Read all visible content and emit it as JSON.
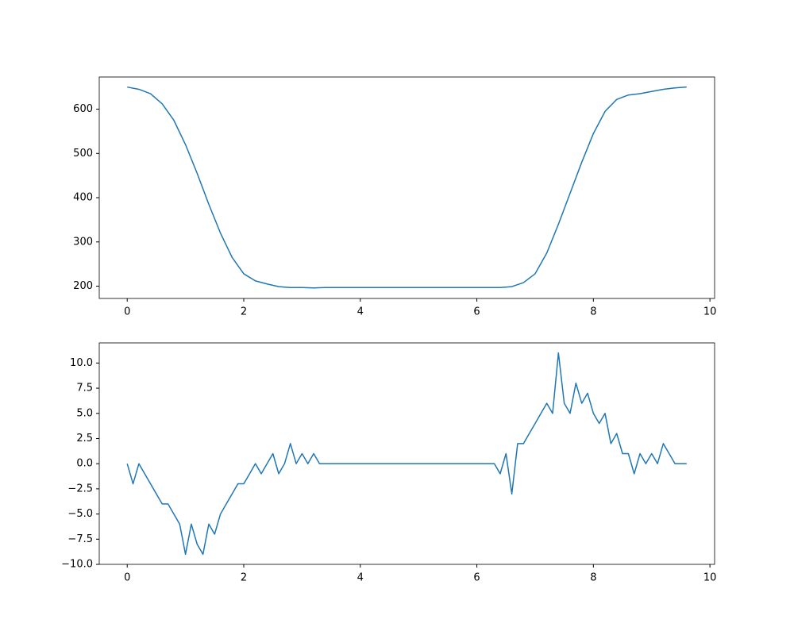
{
  "chart_data": [
    {
      "type": "line",
      "x": [
        0,
        0.2,
        0.4,
        0.6,
        0.8,
        1.0,
        1.2,
        1.4,
        1.6,
        1.8,
        2.0,
        2.2,
        2.4,
        2.6,
        2.8,
        3.0,
        3.2,
        3.4,
        3.6,
        3.8,
        4.0,
        4.2,
        4.4,
        4.6,
        4.8,
        5.0,
        5.2,
        5.4,
        5.6,
        5.8,
        6.0,
        6.2,
        6.4,
        6.6,
        6.8,
        7.0,
        7.2,
        7.4,
        7.6,
        7.8,
        8.0,
        8.2,
        8.4,
        8.6,
        8.8,
        9.0,
        9.2,
        9.4,
        9.6
      ],
      "series": [
        {
          "color": "#1f77b4",
          "values": [
            650,
            645,
            635,
            612,
            575,
            520,
            455,
            385,
            320,
            265,
            228,
            212,
            205,
            199,
            197,
            197,
            196,
            197,
            197,
            197,
            197,
            197,
            197,
            197,
            197,
            197,
            197,
            197,
            197,
            197,
            197,
            197,
            197,
            199,
            208,
            228,
            275,
            340,
            410,
            480,
            545,
            595,
            622,
            632,
            635,
            640,
            645,
            648,
            650
          ]
        }
      ],
      "xlim": [
        -0.48,
        10.08
      ],
      "xticks": [
        0,
        2,
        4,
        6,
        8,
        10
      ],
      "ylim": [
        172.25,
        672.75
      ],
      "yticks": [
        200,
        300,
        400,
        500,
        600
      ]
    },
    {
      "type": "line",
      "x": [
        0,
        0.1,
        0.2,
        0.3,
        0.4,
        0.5,
        0.6,
        0.7,
        0.8,
        0.9,
        1.0,
        1.1,
        1.2,
        1.3,
        1.4,
        1.5,
        1.6,
        1.7,
        1.8,
        1.9,
        2.0,
        2.1,
        2.2,
        2.3,
        2.4,
        2.5,
        2.6,
        2.7,
        2.8,
        2.9,
        3.0,
        3.1,
        3.2,
        3.3,
        3.4,
        3.5,
        3.6,
        3.7,
        3.8,
        3.9,
        4.0,
        4.1,
        4.2,
        4.3,
        4.4,
        4.5,
        4.6,
        4.7,
        4.8,
        4.9,
        5.0,
        5.1,
        5.2,
        5.3,
        5.4,
        5.5,
        5.6,
        5.7,
        5.8,
        5.9,
        6.0,
        6.1,
        6.2,
        6.3,
        6.4,
        6.5,
        6.6,
        6.7,
        6.8,
        6.9,
        7.0,
        7.1,
        7.2,
        7.3,
        7.4,
        7.5,
        7.6,
        7.7,
        7.8,
        7.9,
        8.0,
        8.1,
        8.2,
        8.3,
        8.4,
        8.5,
        8.6,
        8.7,
        8.8,
        8.9,
        9.0,
        9.1,
        9.2,
        9.3,
        9.4,
        9.5,
        9.6
      ],
      "series": [
        {
          "color": "#1f77b4",
          "values": [
            0,
            -2,
            0,
            -1,
            -2,
            -3,
            -4,
            -4,
            -5,
            -6,
            -9,
            -6,
            -8,
            -9,
            -6,
            -7,
            -5,
            -4,
            -3,
            -2,
            -2,
            -1,
            0,
            -1,
            0,
            1,
            -1,
            0,
            2,
            0,
            1,
            0,
            1,
            0,
            0,
            0,
            0,
            0,
            0,
            0,
            0,
            0,
            0,
            0,
            0,
            0,
            0,
            0,
            0,
            0,
            0,
            0,
            0,
            0,
            0,
            0,
            0,
            0,
            0,
            0,
            0,
            0,
            0,
            0,
            -1,
            1,
            -3,
            2,
            2,
            3,
            4,
            5,
            6,
            5,
            11,
            6,
            5,
            8,
            6,
            7,
            5,
            4,
            5,
            2,
            3,
            1,
            1,
            -1,
            1,
            0,
            1,
            0,
            2,
            1,
            0,
            0,
            0
          ]
        }
      ],
      "xlim": [
        -0.48,
        10.08
      ],
      "xticks": [
        0,
        2,
        4,
        6,
        8,
        10
      ],
      "ylim": [
        -10,
        12
      ],
      "yticks": [
        {
          "value": -10,
          "label": "−10.0"
        },
        {
          "value": -7.5,
          "label": "−7.5"
        },
        {
          "value": -5,
          "label": "−5.0"
        },
        {
          "value": -2.5,
          "label": "−2.5"
        },
        {
          "value": 0,
          "label": "0.0"
        },
        {
          "value": 2.5,
          "label": "2.5"
        },
        {
          "value": 5,
          "label": "5.0"
        },
        {
          "value": 7.5,
          "label": "7.5"
        },
        {
          "value": 10,
          "label": "10.0"
        }
      ]
    }
  ]
}
